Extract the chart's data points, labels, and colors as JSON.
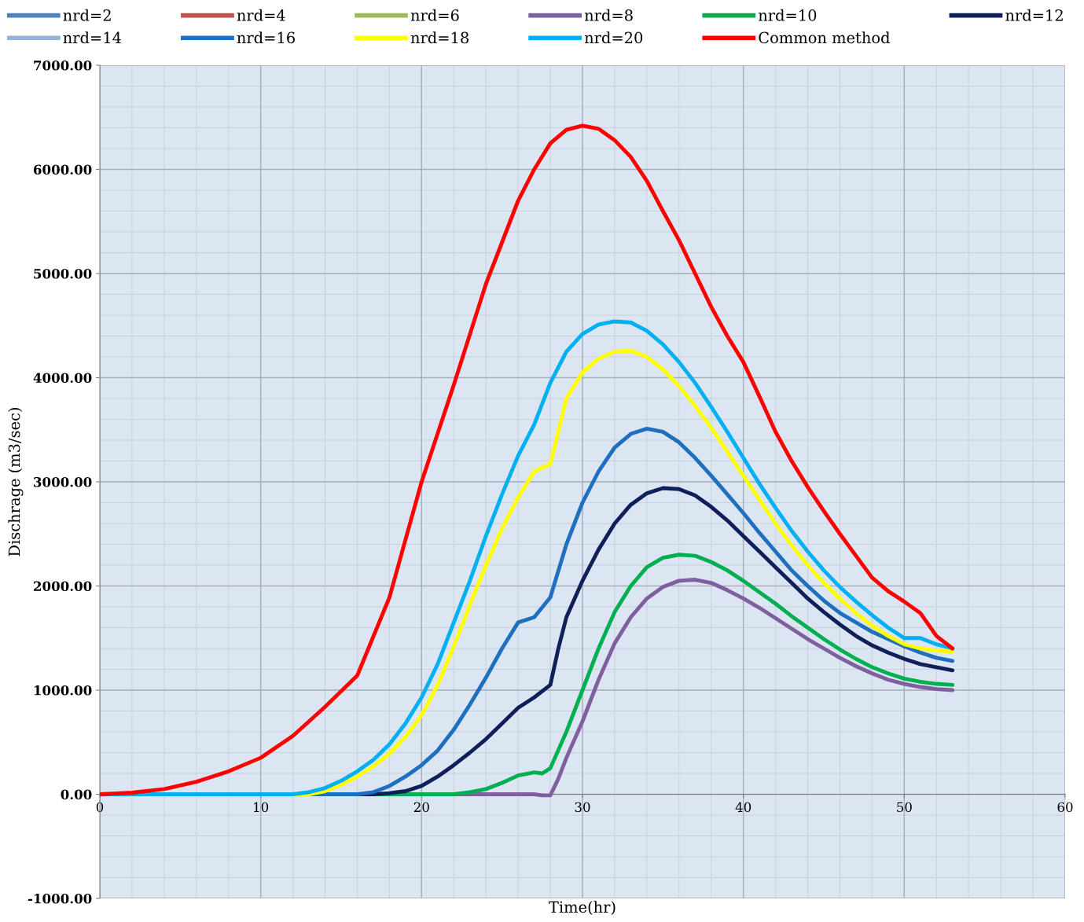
{
  "chart_data": {
    "type": "line",
    "xlabel": "Time(hr)",
    "ylabel": "Dischrage (m3/sec)",
    "xlim": [
      0,
      60
    ],
    "xticks": [
      0,
      10,
      20,
      30,
      40,
      50,
      60
    ],
    "ylim": [
      -1000,
      7000
    ],
    "yticks": [
      {
        "value": -1000,
        "label": "-1000.00"
      },
      {
        "value": 0,
        "label": "0.00"
      },
      {
        "value": 1000,
        "label": "1000.00"
      },
      {
        "value": 2000,
        "label": "2000.00"
      },
      {
        "value": 3000,
        "label": "3000.00"
      },
      {
        "value": 4000,
        "label": "4000.00"
      },
      {
        "value": 5000,
        "label": "5000.00"
      },
      {
        "value": 6000,
        "label": "6000.00"
      },
      {
        "value": 7000,
        "label": "7000.00"
      }
    ],
    "grid": true,
    "legend": "top",
    "marker": "none",
    "line_style": "solid",
    "series": [
      {
        "name": "nrd=2",
        "color": "#4f81bd"
      },
      {
        "name": "nrd=4",
        "color": "#c0504d"
      },
      {
        "name": "nrd=6",
        "color": "#9bbb59"
      },
      {
        "name": "nrd=8",
        "color": "#7f609f",
        "x": [
          0,
          10,
          20,
          27,
          27.5,
          28,
          28.5,
          29,
          30,
          31,
          32,
          33,
          34,
          35,
          36,
          37,
          38,
          39,
          40,
          41,
          42,
          43,
          44,
          45,
          46,
          47,
          48,
          49,
          50,
          51,
          52,
          53
        ],
        "values": [
          0,
          0,
          0,
          0,
          -10,
          -10,
          150,
          350,
          700,
          1100,
          1450,
          1700,
          1880,
          1990,
          2050,
          2060,
          2030,
          1960,
          1880,
          1790,
          1690,
          1590,
          1490,
          1400,
          1310,
          1230,
          1160,
          1100,
          1060,
          1030,
          1010,
          1000
        ]
      },
      {
        "name": "nrd=10",
        "color": "#00b050",
        "x": [
          0,
          10,
          20,
          22,
          23,
          24,
          25,
          26,
          27,
          27.5,
          28,
          29,
          30,
          31,
          32,
          33,
          34,
          35,
          36,
          37,
          38,
          39,
          40,
          41,
          42,
          43,
          44,
          45,
          46,
          47,
          48,
          49,
          50,
          51,
          52,
          53
        ],
        "values": [
          0,
          0,
          0,
          0,
          20,
          50,
          110,
          180,
          210,
          200,
          250,
          600,
          1000,
          1400,
          1750,
          2000,
          2180,
          2270,
          2300,
          2290,
          2230,
          2150,
          2050,
          1940,
          1830,
          1710,
          1600,
          1490,
          1390,
          1300,
          1220,
          1160,
          1110,
          1080,
          1060,
          1050
        ]
      },
      {
        "name": "nrd=12",
        "color": "#0f1f5a",
        "x": [
          0,
          10,
          17,
          18,
          19,
          20,
          21,
          22,
          23,
          24,
          25,
          26,
          27,
          28,
          28.5,
          29,
          30,
          31,
          32,
          33,
          34,
          35,
          36,
          37,
          38,
          39,
          40,
          41,
          42,
          43,
          44,
          45,
          46,
          47,
          48,
          49,
          50,
          51,
          52,
          53
        ],
        "values": [
          0,
          0,
          0,
          10,
          30,
          80,
          170,
          280,
          400,
          530,
          680,
          830,
          930,
          1050,
          1400,
          1700,
          2050,
          2350,
          2600,
          2780,
          2890,
          2940,
          2930,
          2870,
          2760,
          2630,
          2480,
          2330,
          2180,
          2030,
          1880,
          1750,
          1630,
          1520,
          1430,
          1360,
          1300,
          1250,
          1220,
          1190
        ]
      },
      {
        "name": "nrd=14",
        "color": "#95b3d7"
      },
      {
        "name": "nrd=16",
        "color": "#1f6fbf",
        "x": [
          0,
          10,
          16,
          17,
          18,
          19,
          20,
          21,
          22,
          23,
          24,
          25,
          26,
          27,
          28,
          29,
          30,
          31,
          32,
          33,
          34,
          35,
          36,
          37,
          38,
          39,
          40,
          41,
          42,
          43,
          44,
          45,
          46,
          47,
          48,
          49,
          50,
          51,
          52,
          53
        ],
        "values": [
          0,
          0,
          0,
          20,
          80,
          170,
          280,
          420,
          620,
          860,
          1120,
          1400,
          1650,
          1700,
          1890,
          2400,
          2800,
          3100,
          3330,
          3460,
          3510,
          3480,
          3380,
          3230,
          3060,
          2880,
          2700,
          2510,
          2330,
          2150,
          2000,
          1860,
          1740,
          1650,
          1560,
          1490,
          1420,
          1360,
          1310,
          1280
        ]
      },
      {
        "name": "nrd=18",
        "color": "#ffff00",
        "x": [
          0,
          10,
          13,
          14,
          15,
          16,
          17,
          18,
          19,
          20,
          21,
          22,
          23,
          24,
          25,
          26,
          27,
          28,
          29,
          30,
          31,
          32,
          33,
          34,
          35,
          36,
          37,
          38,
          39,
          40,
          41,
          42,
          43,
          44,
          45,
          46,
          47,
          48,
          49,
          50,
          51,
          52,
          53
        ],
        "values": [
          0,
          0,
          0,
          30,
          90,
          170,
          270,
          390,
          550,
          760,
          1050,
          1420,
          1820,
          2200,
          2550,
          2850,
          3100,
          3170,
          3800,
          4050,
          4180,
          4250,
          4260,
          4200,
          4080,
          3920,
          3730,
          3520,
          3290,
          3060,
          2830,
          2600,
          2390,
          2200,
          2030,
          1880,
          1740,
          1620,
          1520,
          1440,
          1400,
          1380,
          1370
        ]
      },
      {
        "name": "nrd=20",
        "color": "#00b0f0",
        "x": [
          0,
          10,
          12,
          13,
          14,
          15,
          16,
          17,
          18,
          19,
          20,
          21,
          22,
          23,
          24,
          25,
          26,
          27,
          28,
          29,
          30,
          31,
          32,
          33,
          34,
          35,
          36,
          37,
          38,
          39,
          40,
          41,
          42,
          43,
          44,
          45,
          46,
          47,
          48,
          49,
          50,
          51,
          52,
          53
        ],
        "values": [
          0,
          0,
          0,
          20,
          60,
          130,
          220,
          330,
          480,
          680,
          930,
          1250,
          1650,
          2050,
          2480,
          2880,
          3250,
          3550,
          3950,
          4250,
          4420,
          4510,
          4540,
          4530,
          4450,
          4320,
          4150,
          3950,
          3720,
          3480,
          3230,
          2980,
          2750,
          2530,
          2330,
          2150,
          1990,
          1850,
          1720,
          1600,
          1500,
          1500,
          1440,
          1400
        ]
      },
      {
        "name": "Common method",
        "color": "#ff0000",
        "x": [
          0,
          2,
          4,
          6,
          8,
          10,
          12,
          14,
          16,
          18,
          20,
          22,
          24,
          25,
          26,
          27,
          28,
          29,
          30,
          31,
          32,
          33,
          34,
          35,
          36,
          37,
          38,
          39,
          40,
          41,
          42,
          43,
          44,
          45,
          46,
          47,
          48,
          49,
          50,
          51,
          52,
          53
        ],
        "values": [
          0,
          15,
          50,
          120,
          220,
          350,
          560,
          840,
          1140,
          1890,
          3000,
          3930,
          4900,
          5300,
          5700,
          6000,
          6250,
          6380,
          6420,
          6390,
          6280,
          6120,
          5890,
          5600,
          5320,
          5000,
          4680,
          4400,
          4150,
          3820,
          3480,
          3200,
          2950,
          2720,
          2500,
          2290,
          2080,
          1950,
          1850,
          1740,
          1520,
          1400
        ]
      }
    ]
  }
}
